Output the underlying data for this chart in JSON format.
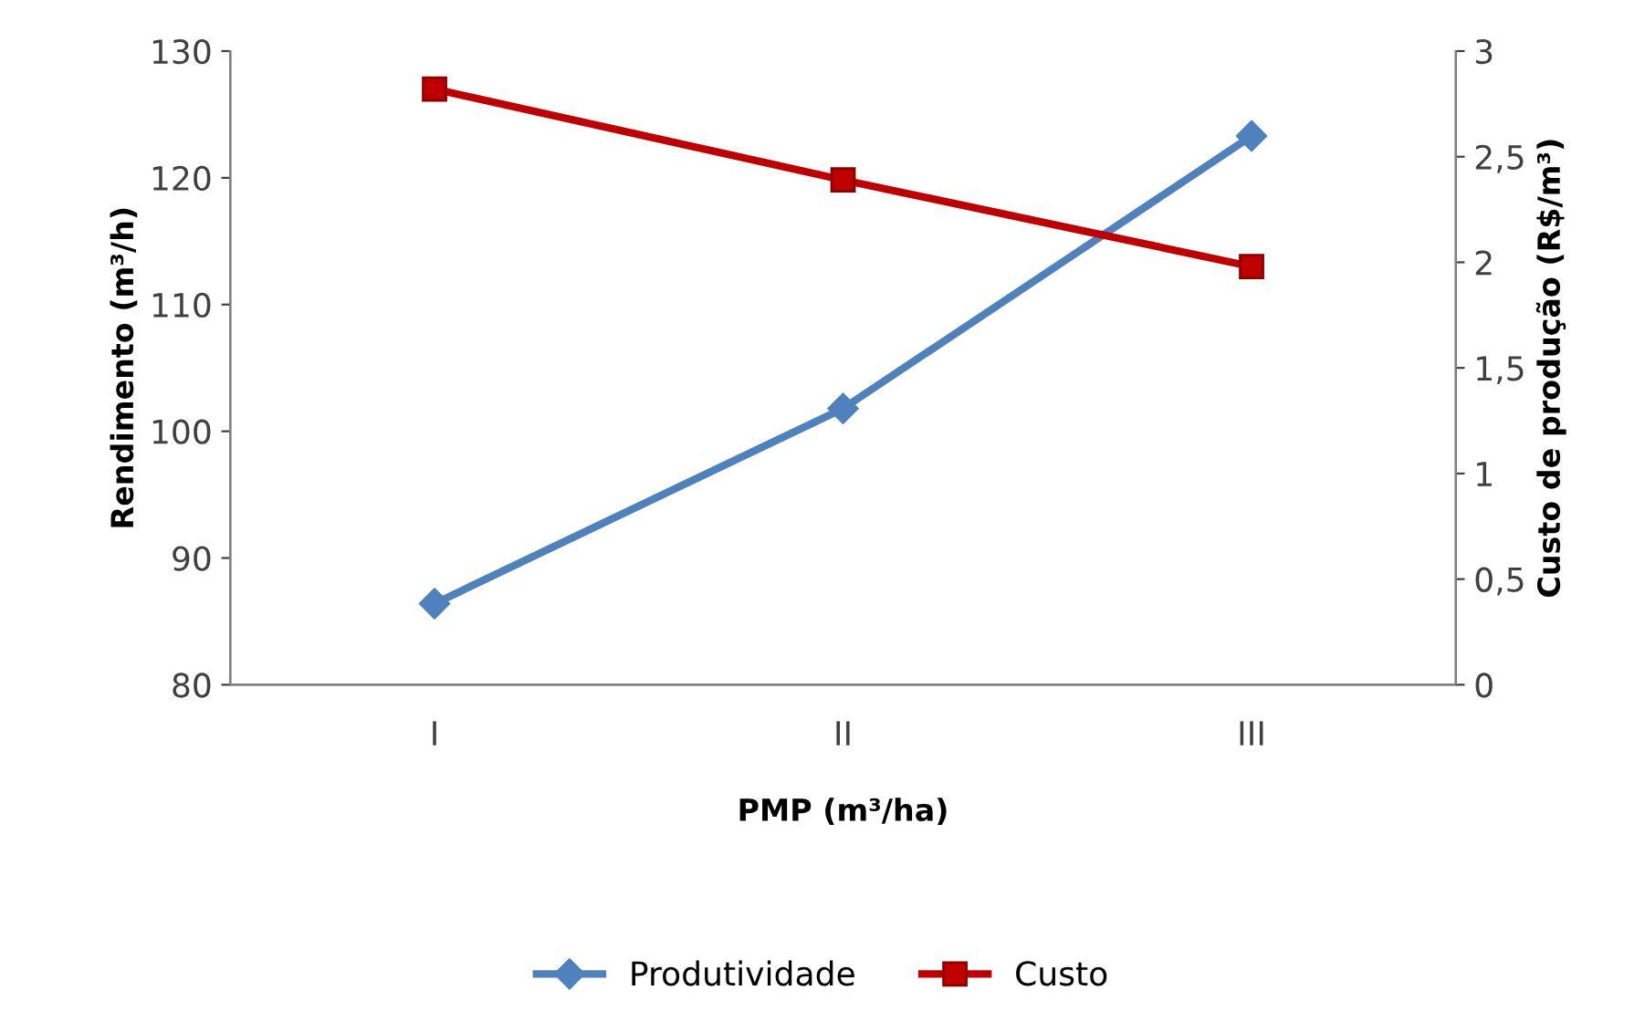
{
  "chart_data": {
    "type": "line",
    "xlabel": "PMP (m³/ha)",
    "ylabel": "Rendimento (m³/h)",
    "y2label": "Custo de produção (R$/m³)",
    "categories": [
      "I",
      "II",
      "III"
    ],
    "series": [
      {
        "name": "Produtividade",
        "color": "#4f81bd",
        "marker": "diamond",
        "values": [
          86.4,
          101.8,
          123.3
        ]
      },
      {
        "name": "Custo",
        "color": "#c00000",
        "marker": "square",
        "axis": "y2",
        "values": [
          2.82,
          2.39,
          1.98
        ]
      }
    ],
    "ylim": [
      80,
      130
    ],
    "yticks": [
      80,
      90,
      100,
      110,
      120,
      130
    ],
    "y2lim": [
      0,
      3
    ],
    "y2ticks": [
      0,
      {
        "value": 0.5,
        "label": "0,5"
      },
      1,
      {
        "value": 1.5,
        "label": "1,5"
      },
      2,
      {
        "value": 2.5,
        "label": "2,5"
      },
      3
    ],
    "grid": false,
    "legend": "bottom",
    "line_style": "solid"
  }
}
